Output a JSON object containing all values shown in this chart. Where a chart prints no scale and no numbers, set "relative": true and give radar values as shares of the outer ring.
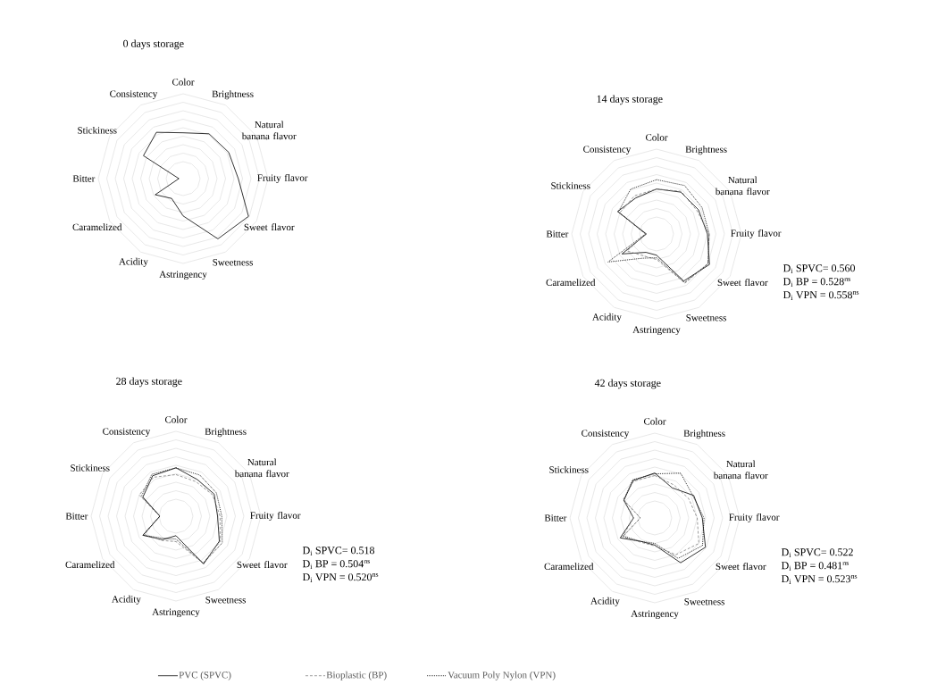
{
  "chart_data": [
    {
      "type": "radar",
      "title": "0 days storage",
      "relative": true,
      "grid": true,
      "categories": [
        "Color",
        "Brightness",
        "Natural banana flavor",
        "Fruity flavor",
        "Sweet flavor",
        "Sweetness",
        "Astringency",
        "Acidity",
        "Caramelized",
        "Bitter",
        "Stickiness",
        "Consistency"
      ],
      "series": [
        {
          "color": "#000000",
          "line_style": "solid",
          "values": [
            0.54,
            0.61,
            0.62,
            0.65,
            0.89,
            0.82,
            0.44,
            0.27,
            0.38,
            0.05,
            0.54,
            0.63
          ]
        }
      ]
    },
    {
      "type": "radar",
      "title": "14 days storage",
      "relative": true,
      "grid": true,
      "categories": [
        "Color",
        "Brightness",
        "Natural banana flavor",
        "Fruity flavor",
        "Sweet flavor",
        "Sweetness",
        "Astringency",
        "Acidity",
        "Caramelized",
        "Bitter",
        "Stickiness",
        "Consistency"
      ],
      "series": [
        {
          "color": "#000000",
          "line_style": "solid",
          "values": [
            0.53,
            0.57,
            0.57,
            0.6,
            0.72,
            0.64,
            0.25,
            0.25,
            0.47,
            0.12,
            0.53,
            0.49
          ]
        },
        {
          "color": "#808080",
          "line_style": "dashed",
          "values": [
            0.53,
            0.58,
            0.55,
            0.62,
            0.7,
            0.67,
            0.3,
            0.3,
            0.4,
            0.13,
            0.5,
            0.52
          ]
        },
        {
          "color": "#000000",
          "line_style": "dotted",
          "values": [
            0.64,
            0.66,
            0.62,
            0.62,
            0.7,
            0.66,
            0.28,
            0.33,
            0.66,
            0.13,
            0.52,
            0.61
          ]
        }
      ],
      "annotations": [
        "D$_{i}$ SPVC= 0.560",
        "D$_{i}$ BP = 0.528$^{ns}$",
        "D$_{i}$ VPN = 0.558$^{ns}$"
      ]
    },
    {
      "type": "radar",
      "title": "28 days storage",
      "relative": true,
      "grid": true,
      "categories": [
        "Color",
        "Brightness",
        "Natural banana flavor",
        "Fruity flavor",
        "Sweet flavor",
        "Sweetness",
        "Astringency",
        "Acidity",
        "Caramelized",
        "Bitter",
        "Stickiness",
        "Consistency"
      ],
      "series": [
        {
          "color": "#000000",
          "line_style": "solid",
          "values": [
            0.57,
            0.5,
            0.52,
            0.49,
            0.59,
            0.65,
            0.23,
            0.32,
            0.45,
            0.19,
            0.45,
            0.55
          ]
        },
        {
          "color": "#808080",
          "line_style": "dashed",
          "values": [
            0.49,
            0.47,
            0.5,
            0.52,
            0.6,
            0.64,
            0.3,
            0.33,
            0.43,
            0.19,
            0.5,
            0.53
          ]
        },
        {
          "color": "#000000",
          "line_style": "dotted",
          "values": [
            0.57,
            0.56,
            0.55,
            0.54,
            0.63,
            0.64,
            0.27,
            0.3,
            0.45,
            0.19,
            0.47,
            0.57
          ]
        }
      ],
      "annotations": [
        "D$_{i}$ SPVC= 0.518",
        "D$_{i}$ BP = 0.504$^{ns}$",
        "D$_{i}$ VPN = 0.520$^{ns}$"
      ]
    },
    {
      "type": "radar",
      "title": "42 days storage",
      "relative": true,
      "grid": true,
      "legend": "bottom",
      "categories": [
        "Color",
        "Brightness",
        "Natural banana flavor",
        "Fruity flavor",
        "Sweet flavor",
        "Sweetness",
        "Astringency",
        "Acidity",
        "Caramelized",
        "Bitter",
        "Stickiness",
        "Consistency"
      ],
      "series": [
        {
          "name": "PVC (SPVC)",
          "color": "#000000",
          "line_style": "solid",
          "values": [
            0.53,
            0.41,
            0.53,
            0.56,
            0.69,
            0.61,
            0.32,
            0.32,
            0.47,
            0.25,
            0.42,
            0.51
          ]
        },
        {
          "name": "Bioplastic (BP)",
          "color": "#808080",
          "line_style": "dashed",
          "values": [
            0.5,
            0.45,
            0.46,
            0.5,
            0.6,
            0.5,
            0.33,
            0.33,
            0.44,
            0.25,
            0.43,
            0.5
          ]
        },
        {
          "name": "Vacuum Poly Nylon (VPN)",
          "color": "#000000",
          "line_style": "dotted",
          "values": [
            0.52,
            0.61,
            0.52,
            0.58,
            0.65,
            0.55,
            0.3,
            0.32,
            0.43,
            0.17,
            0.42,
            0.52
          ]
        }
      ],
      "annotations": [
        "D$_{i}$ SPVC= 0.522",
        "D$_{i}$ BP = 0.481$^{ns}$",
        "D$_{i}$ VPN = 0.523$^{ns}$"
      ]
    }
  ]
}
